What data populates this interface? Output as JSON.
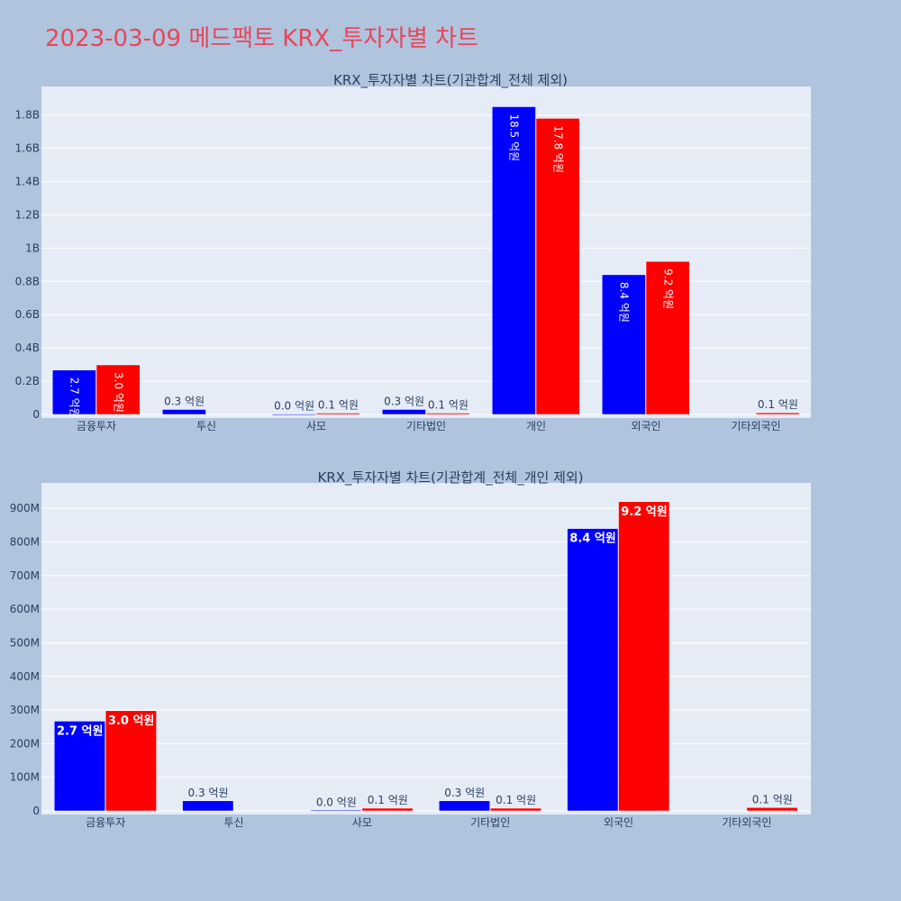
{
  "page": {
    "title": "2023-03-09 메드팩토 KRX_투자자별 차트"
  },
  "colors": {
    "page_bg": "#b0c4de",
    "plot_bg": "#e5ecf6",
    "grid": "#ffffff",
    "buy": "#0000ff",
    "sell": "#ff0000",
    "title": "#e8455a",
    "text": "#2a3f5f"
  },
  "chart_data": [
    {
      "type": "bar",
      "title": "KRX_투자자별 차트(기관합계_전체 제외)",
      "categories": [
        "금융투자",
        "투신",
        "사모",
        "기타법인",
        "개인",
        "외국인",
        "기타외국인"
      ],
      "ylim": [
        0,
        1950000000
      ],
      "yticks": [
        0,
        200000000,
        400000000,
        600000000,
        800000000,
        1000000000,
        1200000000,
        1400000000,
        1600000000,
        1800000000
      ],
      "ytick_labels": [
        "0",
        "0.2B",
        "0.4B",
        "0.6B",
        "0.8B",
        "1B",
        "1.2B",
        "1.4B",
        "1.6B",
        "1.8B"
      ],
      "series": [
        {
          "color": "#0000ff",
          "values": [
            267000000,
            30000000,
            2000000,
            30000000,
            1850000000,
            840000000,
            0
          ],
          "labels": [
            "2.7 억원",
            "0.3 억원",
            "0.0 억원",
            "0.3 억원",
            "18.5 억원",
            "8.4 억원",
            ""
          ]
        },
        {
          "color": "#ff0000",
          "values": [
            298000000,
            0,
            8000000,
            8000000,
            1780000000,
            920000000,
            10000000
          ],
          "labels": [
            "3.0 억원",
            "",
            "0.1 억원",
            "0.1 억원",
            "17.8 억원",
            "9.2 억원",
            "0.1 억원"
          ]
        }
      ],
      "grid": true,
      "label_style": "rotated"
    },
    {
      "type": "bar",
      "title": "KRX_투자자별 차트(기관합계_전체_개인 제외)",
      "categories": [
        "금융투자",
        "투신",
        "사모",
        "기타법인",
        "외국인",
        "기타외국인"
      ],
      "ylim": [
        0,
        965000000
      ],
      "yticks": [
        0,
        100000000,
        200000000,
        300000000,
        400000000,
        500000000,
        600000000,
        700000000,
        800000000,
        900000000
      ],
      "ytick_labels": [
        "0",
        "100M",
        "200M",
        "300M",
        "400M",
        "500M",
        "600M",
        "700M",
        "800M",
        "900M"
      ],
      "series": [
        {
          "color": "#0000ff",
          "values": [
            267000000,
            30000000,
            2000000,
            30000000,
            840000000,
            0
          ],
          "labels": [
            "2.7 억원",
            "0.3 억원",
            "0.0 억원",
            "0.3 억원",
            "8.4 억원",
            ""
          ]
        },
        {
          "color": "#ff0000",
          "values": [
            298000000,
            0,
            8000000,
            8000000,
            920000000,
            10000000
          ],
          "labels": [
            "3.0 억원",
            "",
            "0.1 억원",
            "0.1 억원",
            "9.2 억원",
            "0.1 억원"
          ]
        }
      ],
      "grid": true,
      "label_style": "horizontal"
    }
  ]
}
